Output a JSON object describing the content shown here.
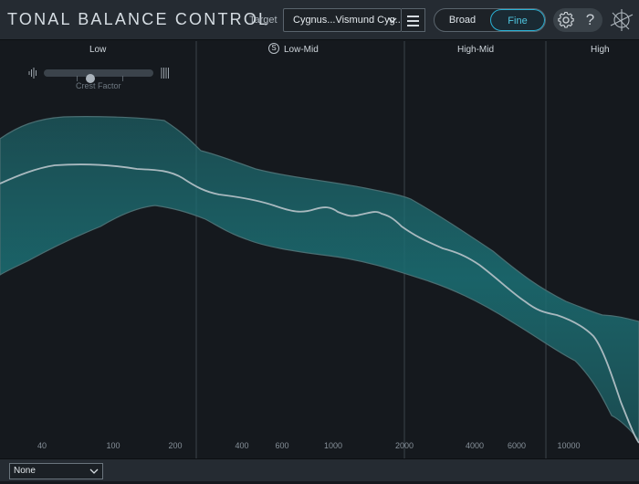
{
  "header": {
    "app_title": "TONAL BALANCE CONTROL",
    "target_label": "Target",
    "target_value": "Cygnus...Vismund Cyg...",
    "mode_broad": "Broad",
    "mode_fine": "Fine",
    "help_label": "?",
    "icons": {
      "menu": "hamburger-icon",
      "settings": "gear-icon",
      "logo": "izotope-logo-icon"
    }
  },
  "bands": {
    "low": "Low",
    "low_mid": "Low-Mid",
    "high_mid": "High-Mid",
    "high": "High",
    "solo_letter": "S"
  },
  "crest_factor": {
    "label": "Crest Factor",
    "value": 0.42
  },
  "chart_data": {
    "type": "area",
    "x_scale": "log",
    "xlim": [
      27,
      18000
    ],
    "x_tick_labels": [
      "40",
      "100",
      "200",
      "400",
      "600",
      "1000",
      "2000",
      "4000",
      "6000",
      "10000"
    ],
    "x_tick_values": [
      40,
      100,
      200,
      400,
      600,
      1000,
      2000,
      4000,
      6000,
      10000
    ],
    "band_dividers_hz": [
      210,
      2000,
      8500
    ],
    "colors": {
      "fill": "#1b6b70",
      "edge": "#4a6e72",
      "line": "#a9b9bf"
    }
  },
  "footer": {
    "preset_value": "None"
  }
}
